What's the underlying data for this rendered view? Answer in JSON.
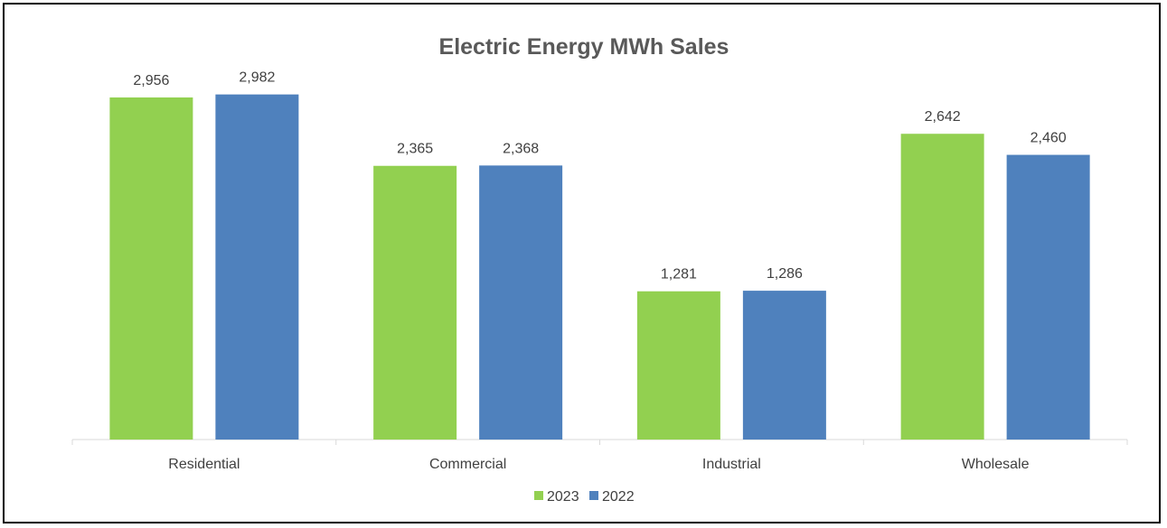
{
  "chart_data": {
    "type": "bar",
    "title": "Electric Energy MWh Sales",
    "xlabel": "",
    "ylabel": "",
    "categories": [
      "Residential",
      "Commercial",
      "Industrial",
      "Wholesale"
    ],
    "series": [
      {
        "name": "2023",
        "color": "#92d050",
        "values": [
          2956,
          2365,
          1281,
          2642
        ],
        "labels": [
          "2,956",
          "2,365",
          "1,281",
          "2,642"
        ]
      },
      {
        "name": "2022",
        "color": "#4f81bd",
        "values": [
          2982,
          2368,
          1286,
          2460
        ],
        "labels": [
          "2,982",
          "2,368",
          "1,286",
          "2,460"
        ]
      }
    ],
    "ylim": [
      0,
      3000
    ],
    "grid": false,
    "value_axis_visible": false,
    "data_labels": true,
    "legend_position": "bottom"
  }
}
